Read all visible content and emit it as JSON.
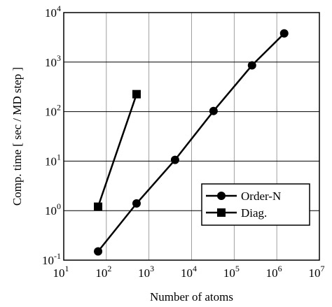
{
  "chart_data": {
    "type": "line",
    "x_scale": "log",
    "y_scale": "log",
    "xlim": [
      10,
      10000000
    ],
    "ylim": [
      0.1,
      10000
    ],
    "x_ticks": [
      {
        "base": "10",
        "exp": "1",
        "value": 10
      },
      {
        "base": "10",
        "exp": "2",
        "value": 100
      },
      {
        "base": "10",
        "exp": "3",
        "value": 1000
      },
      {
        "base": "10",
        "exp": "4",
        "value": 10000
      },
      {
        "base": "10",
        "exp": "5",
        "value": 100000
      },
      {
        "base": "10",
        "exp": "6",
        "value": 1000000
      },
      {
        "base": "10",
        "exp": "7",
        "value": 10000000
      }
    ],
    "y_ticks": [
      {
        "base": "10",
        "exp": "-1",
        "value": 0.1
      },
      {
        "base": "10",
        "exp": "0",
        "value": 1
      },
      {
        "base": "10",
        "exp": "1",
        "value": 10
      },
      {
        "base": "10",
        "exp": "2",
        "value": 100
      },
      {
        "base": "10",
        "exp": "3",
        "value": 1000
      },
      {
        "base": "10",
        "exp": "4",
        "value": 10000
      }
    ],
    "xlabel": "Number of atoms",
    "ylabel": "Comp. time [ sec / MD step ]",
    "grid": true,
    "legend_position": "lower-right",
    "series": [
      {
        "name": "Order-N",
        "marker": "circle",
        "color": "#000000",
        "x": [
          64,
          512,
          4096,
          32768,
          262144,
          1492992
        ],
        "y": [
          0.15,
          1.4,
          10.6,
          103,
          860,
          3800
        ]
      },
      {
        "name": "Diag.",
        "marker": "square",
        "color": "#000000",
        "x": [
          64,
          512
        ],
        "y": [
          1.2,
          225
        ]
      }
    ]
  }
}
